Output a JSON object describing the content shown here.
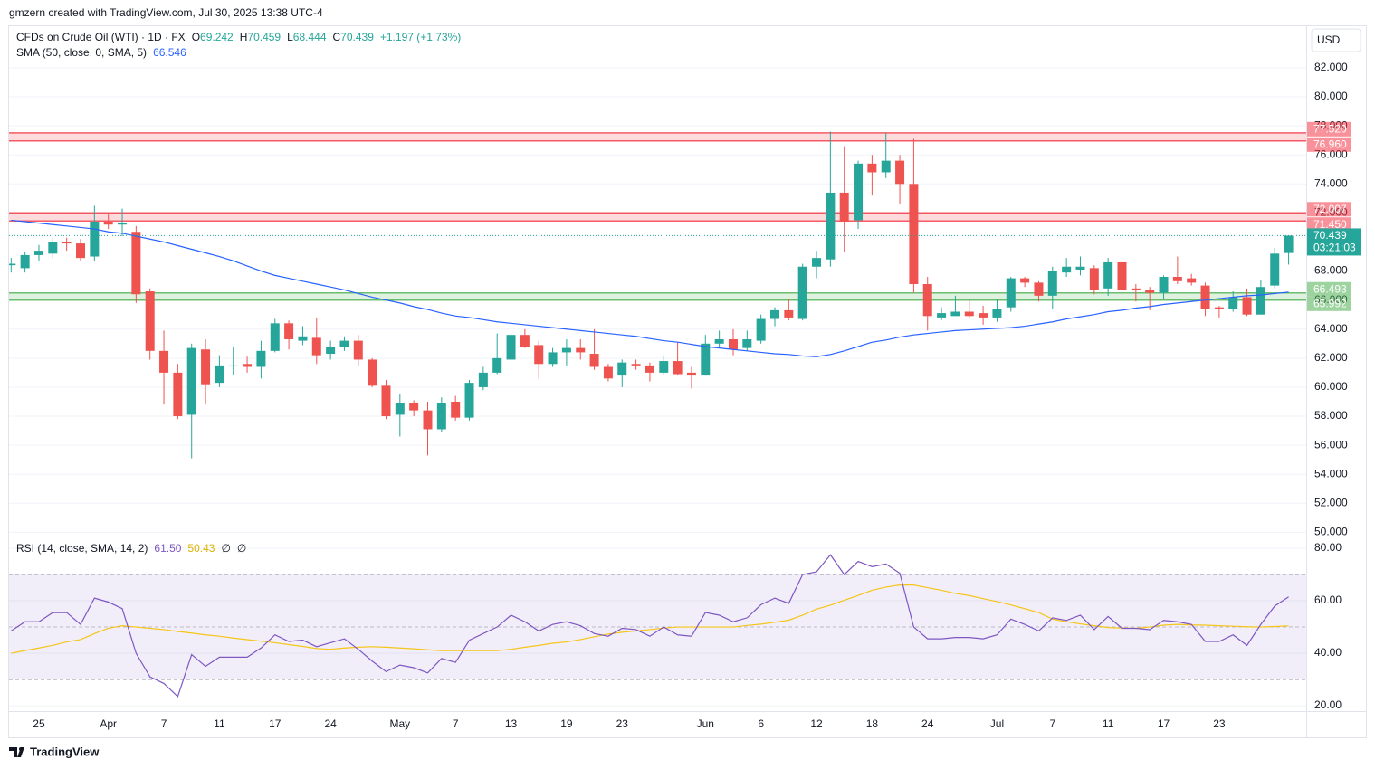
{
  "header": {
    "text": "gmzern created with TradingView.com, Jul 30, 2025 13:38 UTC-4"
  },
  "footer": {
    "brand": "TradingView"
  },
  "chart_data": [
    {
      "type": "candlestick",
      "title": "CFDs on Crude Oil (WTI) · 1D · FX",
      "ohlc_letters": [
        "O",
        "H",
        "L",
        "C"
      ],
      "change_label": "+1.197 (+1.73%)",
      "currency": "USD",
      "countdown": "03:21:03",
      "up_color": "#26a69a",
      "down_color": "#ef5350",
      "categories": [
        null,
        null,
        "25",
        null,
        null,
        null,
        null,
        "Apr",
        null,
        null,
        null,
        "7",
        null,
        null,
        null,
        "11",
        null,
        null,
        null,
        "17",
        null,
        null,
        null,
        "24",
        null,
        null,
        null,
        null,
        "May",
        null,
        null,
        null,
        "7",
        null,
        null,
        null,
        "13",
        null,
        null,
        null,
        "19",
        null,
        null,
        null,
        "23",
        null,
        null,
        null,
        null,
        null,
        "Jun",
        null,
        null,
        null,
        "6",
        null,
        null,
        null,
        "12",
        null,
        null,
        null,
        "18",
        null,
        null,
        null,
        "24",
        null,
        null,
        null,
        null,
        "Jul",
        null,
        null,
        null,
        "7",
        null,
        null,
        null,
        "11",
        null,
        null,
        null,
        "17",
        null,
        null,
        null,
        "23",
        null,
        null,
        null,
        null,
        null
      ],
      "open": [
        68.4,
        68.2,
        69.1,
        69.2,
        70.0,
        69.9,
        69.0,
        71.4,
        71.2,
        70.7,
        66.6,
        62.5,
        61.0,
        58.1,
        62.6,
        60.3,
        61.5,
        61.6,
        61.4,
        62.5,
        64.4,
        63.2,
        63.4,
        62.3,
        62.8,
        63.2,
        61.9,
        60.1,
        58.1,
        58.9,
        58.4,
        57.1,
        59.0,
        57.9,
        60.0,
        61.0,
        61.9,
        63.6,
        62.9,
        61.6,
        62.4,
        62.7,
        62.3,
        61.4,
        60.8,
        61.6,
        61.5,
        61.0,
        61.8,
        61.0,
        60.8,
        63.0,
        63.3,
        62.7,
        63.2,
        64.7,
        65.3,
        64.7,
        68.3,
        68.8,
        73.4,
        71.5,
        75.4,
        74.8,
        75.6,
        74.0,
        67.1,
        64.8,
        64.9,
        65.2,
        65.1,
        64.8,
        65.5,
        67.5,
        67.2,
        66.3,
        67.9,
        68.1,
        68.2,
        66.8,
        68.6,
        66.8,
        66.7,
        66.5,
        67.6,
        67.5,
        67.0,
        65.5,
        65.4,
        66.2,
        65.0,
        67.0,
        69.242
      ],
      "high": [
        68.9,
        69.3,
        69.8,
        70.3,
        70.3,
        70.2,
        72.5,
        72.0,
        72.3,
        71.1,
        66.8,
        63.9,
        61.6,
        63.0,
        63.3,
        62.2,
        62.8,
        62.1,
        63.2,
        64.7,
        64.6,
        64.2,
        64.8,
        63.2,
        63.5,
        63.6,
        62.0,
        60.5,
        59.5,
        59.1,
        59.0,
        59.3,
        59.4,
        60.5,
        61.4,
        63.7,
        63.8,
        64.0,
        63.2,
        62.7,
        63.3,
        63.3,
        64.0,
        61.6,
        61.9,
        61.9,
        61.7,
        62.2,
        63.1,
        61.4,
        63.6,
        63.9,
        64.0,
        63.9,
        65.0,
        65.5,
        66.1,
        68.5,
        69.4,
        77.6,
        76.6,
        75.6,
        76.0,
        77.5,
        76.0,
        77.1,
        67.6,
        65.5,
        66.3,
        66.0,
        65.6,
        66.1,
        67.6,
        67.6,
        67.3,
        68.3,
        68.9,
        69.0,
        68.4,
        68.9,
        69.6,
        67.1,
        66.9,
        67.7,
        69.0,
        67.8,
        67.2,
        65.6,
        66.6,
        66.8,
        67.4,
        69.6,
        70.459
      ],
      "low": [
        67.9,
        67.9,
        68.7,
        68.9,
        69.4,
        68.7,
        68.7,
        70.9,
        70.4,
        65.8,
        61.9,
        58.8,
        57.8,
        55.1,
        58.8,
        60.0,
        60.8,
        61.0,
        60.6,
        62.4,
        62.6,
        62.9,
        61.6,
        61.9,
        62.5,
        61.5,
        60.0,
        57.8,
        56.6,
        58.0,
        55.3,
        56.9,
        57.7,
        57.7,
        59.8,
        60.9,
        61.8,
        62.7,
        60.6,
        61.4,
        61.5,
        61.9,
        61.2,
        60.4,
        60.0,
        61.2,
        60.4,
        60.8,
        60.8,
        59.9,
        60.8,
        62.7,
        62.2,
        62.5,
        63.0,
        64.2,
        64.6,
        64.6,
        67.5,
        68.3,
        69.3,
        70.9,
        73.2,
        74.4,
        72.6,
        66.5,
        63.9,
        64.6,
        64.9,
        64.7,
        64.3,
        64.5,
        65.2,
        66.9,
        65.9,
        65.4,
        67.6,
        67.7,
        66.4,
        66.3,
        66.4,
        65.9,
        65.3,
        66.1,
        67.1,
        67.0,
        64.9,
        64.8,
        65.2,
        64.9,
        65.0,
        66.8,
        68.444
      ],
      "close": [
        68.5,
        69.1,
        69.4,
        70.0,
        69.9,
        68.9,
        71.4,
        71.2,
        71.3,
        66.4,
        62.5,
        61.0,
        58.0,
        62.7,
        60.2,
        61.5,
        61.5,
        61.4,
        62.5,
        64.4,
        63.3,
        63.5,
        62.2,
        62.8,
        63.2,
        61.9,
        60.1,
        58.0,
        58.9,
        58.4,
        57.1,
        58.9,
        57.9,
        60.3,
        61.0,
        62.0,
        63.6,
        62.8,
        61.6,
        62.4,
        62.7,
        62.4,
        61.4,
        60.6,
        61.7,
        61.5,
        61.0,
        61.8,
        60.9,
        60.8,
        63.0,
        63.3,
        62.6,
        63.3,
        64.7,
        65.3,
        64.8,
        68.3,
        68.9,
        73.4,
        71.4,
        75.4,
        74.8,
        75.6,
        74.0,
        67.1,
        64.9,
        65.1,
        65.2,
        64.9,
        64.8,
        65.4,
        67.5,
        67.2,
        66.3,
        68.0,
        68.3,
        68.3,
        66.7,
        68.6,
        66.7,
        66.7,
        66.5,
        67.6,
        67.3,
        67.2,
        65.4,
        65.4,
        66.2,
        65.0,
        66.9,
        69.2,
        70.439
      ],
      "series": [
        {
          "name": "SMA (50, close, 0, SMA, 5)",
          "color": "#2962ff",
          "last_value_label": "66.546",
          "values": [
            71.5,
            71.4,
            71.3,
            71.2,
            71.1,
            71.0,
            70.9,
            70.7,
            70.6,
            70.4,
            70.2,
            70.0,
            69.75,
            69.5,
            69.25,
            69.0,
            68.7,
            68.35,
            68.0,
            67.7,
            67.5,
            67.3,
            67.1,
            66.9,
            66.7,
            66.45,
            66.2,
            66.0,
            65.8,
            65.55,
            65.35,
            65.1,
            64.9,
            64.8,
            64.65,
            64.5,
            64.4,
            64.3,
            64.2,
            64.1,
            64.0,
            63.9,
            63.8,
            63.7,
            63.6,
            63.5,
            63.35,
            63.2,
            63.1,
            62.95,
            62.8,
            62.7,
            62.6,
            62.5,
            62.4,
            62.3,
            62.25,
            62.15,
            62.1,
            62.25,
            62.5,
            62.8,
            63.1,
            63.25,
            63.45,
            63.6,
            63.7,
            63.8,
            63.9,
            63.95,
            64.0,
            64.05,
            64.1,
            64.2,
            64.35,
            64.5,
            64.7,
            64.85,
            65.0,
            65.2,
            65.3,
            65.45,
            65.55,
            65.7,
            65.8,
            65.9,
            66.0,
            66.1,
            66.2,
            66.3,
            66.35,
            66.45,
            66.546
          ]
        }
      ],
      "zones": [
        {
          "high": 77.52,
          "low": 76.96,
          "high_label": "77.520",
          "low_label": "76.960",
          "color": "#f23645"
        },
        {
          "high": 72.007,
          "low": 71.45,
          "high_label": "72.007",
          "low_label": "71.450",
          "color": "#f23645"
        },
        {
          "high": 66.493,
          "low": 65.992,
          "high_label": "66.493",
          "low_label": "65.992",
          "color": "#4caf50"
        }
      ],
      "ylim": [
        49.9,
        84.8
      ],
      "yticks": [
        {
          "value": 50,
          "label": "50.000"
        },
        {
          "value": 52,
          "label": "52.000"
        },
        {
          "value": 54,
          "label": "54.000"
        },
        {
          "value": 56,
          "label": "56.000"
        },
        {
          "value": 58,
          "label": "58.000"
        },
        {
          "value": 60,
          "label": "60.000"
        },
        {
          "value": 62,
          "label": "62.000"
        },
        {
          "value": 64,
          "label": "64.000"
        },
        {
          "value": 66,
          "label": "66.000"
        },
        {
          "value": 68,
          "label": "68.000"
        },
        {
          "value": 70,
          "label": "70.000"
        },
        {
          "value": 72,
          "label": "72.000"
        },
        {
          "value": 74,
          "label": "74.000"
        },
        {
          "value": 76,
          "label": "76.000"
        },
        {
          "value": 78,
          "label": "78.000"
        },
        {
          "value": 80,
          "label": "80.000"
        },
        {
          "value": 82,
          "label": "82.000"
        }
      ],
      "grid": true
    },
    {
      "type": "line",
      "legend_symbols": [
        "∅",
        "∅"
      ],
      "series": [
        {
          "name": "RSI (14, close, SMA, 14, 2)",
          "color": "#7e57c2",
          "last_value_label": "61.50",
          "values": [
            48.5,
            52,
            52,
            55.5,
            55.5,
            51,
            61,
            59.5,
            57,
            40,
            31,
            28.5,
            23.5,
            39.5,
            35,
            38.5,
            38.5,
            38.5,
            42,
            47,
            44.5,
            45,
            42.5,
            44,
            45.5,
            41.5,
            37,
            33,
            35.5,
            34.5,
            32.5,
            38,
            36.5,
            45,
            47.5,
            50,
            54.5,
            52,
            48.5,
            51,
            52,
            50.5,
            47.5,
            46.5,
            49.5,
            49,
            46.5,
            50,
            47,
            46.5,
            55.5,
            54.5,
            52,
            53.5,
            58.5,
            61,
            59,
            70,
            71,
            77.5,
            70,
            75,
            73,
            74,
            70.5,
            50,
            45.5,
            45.5,
            46,
            46,
            45.5,
            47,
            53,
            51,
            48.5,
            53.5,
            52.5,
            54.5,
            49,
            54,
            49.5,
            49.5,
            49,
            52.5,
            52,
            51,
            44.5,
            44.5,
            47,
            43,
            51,
            58,
            61.5
          ]
        },
        {
          "color": "#f5c518",
          "values": [
            40,
            41,
            42,
            43,
            44.3,
            45.2,
            47.5,
            49.5,
            50.5,
            50,
            49.5,
            49,
            48.3,
            47.7,
            47,
            46.5,
            45.8,
            45.2,
            44.6,
            44,
            43.3,
            42.6,
            41.8,
            41.5,
            42,
            42.3,
            42.5,
            42.3,
            42,
            41.7,
            41.3,
            41,
            41,
            41,
            41,
            41,
            41.5,
            42.3,
            43,
            43.8,
            44.3,
            45.2,
            46.3,
            47.3,
            48,
            48.5,
            49,
            49.6,
            50,
            50,
            50,
            50,
            50,
            50.6,
            51.1,
            51.8,
            52.6,
            54.5,
            56.8,
            58.3,
            60.2,
            62,
            64,
            65.2,
            66,
            66,
            65,
            64,
            62.8,
            62,
            60.8,
            59.7,
            58.4,
            57,
            55.5,
            53,
            52,
            51.2,
            50.5,
            49.8,
            49.6,
            49.5,
            50,
            50.7,
            51,
            50.8,
            50.7,
            50.5,
            50.3,
            50.1,
            50,
            50.2,
            50.43
          ]
        }
      ],
      "band_lines": [
        70,
        50,
        30
      ],
      "band_color": "#7e57c2",
      "ylim": [
        18.3,
        83.8
      ],
      "yticks": [
        {
          "value": 20,
          "label": "20.00"
        },
        {
          "value": 40,
          "label": "40.00"
        },
        {
          "value": 60,
          "label": "60.00"
        },
        {
          "value": 80,
          "label": "80.00"
        }
      ],
      "grid": true
    }
  ]
}
